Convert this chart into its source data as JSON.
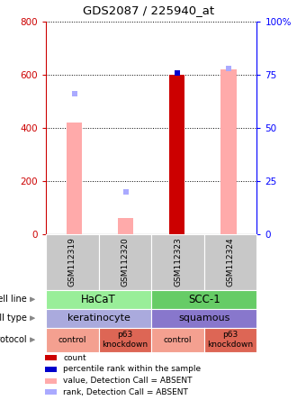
{
  "title": "GDS2087 / 225940_at",
  "samples": [
    "GSM112319",
    "GSM112320",
    "GSM112323",
    "GSM112324"
  ],
  "bar_values": [
    420,
    60,
    600,
    620
  ],
  "bar_colors": [
    "#ffaaaa",
    "#ffaaaa",
    "#cc0000",
    "#ffaaaa"
  ],
  "dot_rank_values": [
    66,
    20,
    76,
    78
  ],
  "dot_rank_colors": [
    "#aaaaff",
    "#aaaaff",
    "#0000cc",
    "#aaaaff"
  ],
  "ylim_left": [
    0,
    800
  ],
  "ylim_right": [
    0,
    100
  ],
  "yticks_left": [
    0,
    200,
    400,
    600,
    800
  ],
  "yticks_right": [
    0,
    25,
    50,
    75,
    100
  ],
  "ytick_labels_right": [
    "0",
    "25",
    "50",
    "75",
    "100%"
  ],
  "cell_line_data": [
    {
      "span": [
        0,
        2
      ],
      "label": "HaCaT",
      "color": "#99ee99"
    },
    {
      "span": [
        2,
        4
      ],
      "label": "SCC-1",
      "color": "#66cc66"
    }
  ],
  "cell_type_data": [
    {
      "span": [
        0,
        2
      ],
      "label": "keratinocyte",
      "color": "#aaaadd"
    },
    {
      "span": [
        2,
        4
      ],
      "label": "squamous",
      "color": "#8877cc"
    }
  ],
  "protocol_data": [
    {
      "span": [
        0,
        1
      ],
      "label": "control",
      "color": "#f4a090"
    },
    {
      "span": [
        1,
        2
      ],
      "label": "p63\nknockdown",
      "color": "#dd6655"
    },
    {
      "span": [
        2,
        3
      ],
      "label": "control",
      "color": "#f4a090"
    },
    {
      "span": [
        3,
        4
      ],
      "label": "p63\nknockdown",
      "color": "#dd6655"
    }
  ],
  "row_labels": [
    "cell line",
    "cell type",
    "protocol"
  ],
  "legend_colors": [
    "#cc0000",
    "#0000cc",
    "#ffaaaa",
    "#aaaaff"
  ],
  "legend_labels": [
    "count",
    "percentile rank within the sample",
    "value, Detection Call = ABSENT",
    "rank, Detection Call = ABSENT"
  ],
  "bar_width": 0.3,
  "sample_gray": "#c8c8c8",
  "left_color": "#cc0000",
  "right_color": "#0000ff"
}
